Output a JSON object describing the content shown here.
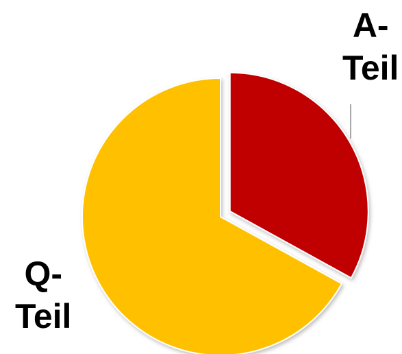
{
  "chart_data": {
    "type": "pie",
    "title": "",
    "slices": [
      {
        "label": "A-\nTeil",
        "value": 33,
        "color": "#C00000",
        "exploded": true
      },
      {
        "label": "Q-\nTeil",
        "value": 67,
        "color": "#FFC000",
        "exploded": false
      }
    ],
    "legend": "none"
  }
}
